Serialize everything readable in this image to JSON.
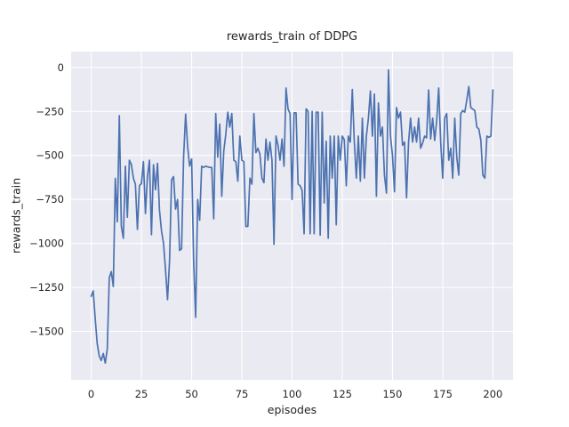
{
  "figure": {
    "title": "rewards_train of DDPG",
    "xlabel": "episodes",
    "ylabel": "rewards_train"
  },
  "chart_data": {
    "type": "line",
    "title": "rewards_train of DDPG",
    "xlabel": "episodes",
    "ylabel": "rewards_train",
    "series_name": "rewards_train",
    "x_start": 0,
    "x_step": 1,
    "values": [
      -1300,
      -1270,
      -1430,
      -1570,
      -1640,
      -1665,
      -1625,
      -1680,
      -1600,
      -1195,
      -1160,
      -1245,
      -630,
      -877,
      -274,
      -903,
      -971,
      -561,
      -851,
      -527,
      -552,
      -629,
      -663,
      -920,
      -672,
      -660,
      -535,
      -830,
      -620,
      -527,
      -950,
      -553,
      -695,
      -545,
      -812,
      -929,
      -1000,
      -1150,
      -1319,
      -1100,
      -640,
      -620,
      -805,
      -750,
      -1040,
      -1030,
      -510,
      -265,
      -450,
      -560,
      -520,
      -1100,
      -1420,
      -750,
      -868,
      -561,
      -568,
      -561,
      -565,
      -568,
      -568,
      -860,
      -262,
      -510,
      -322,
      -732,
      -475,
      -380,
      -254,
      -339,
      -262,
      -527,
      -535,
      -646,
      -390,
      -527,
      -535,
      -903,
      -903,
      -629,
      -663,
      -262,
      -484,
      -459,
      -493,
      -629,
      -655,
      -407,
      -527,
      -424,
      -527,
      -1005,
      -390,
      -442,
      -527,
      -407,
      -561,
      -117,
      -237,
      -262,
      -750,
      -258,
      -258,
      -663,
      -672,
      -698,
      -945,
      -235,
      -250,
      -945,
      -250,
      -945,
      -254,
      -254,
      -953,
      -254,
      -770,
      -420,
      -970,
      -390,
      -629,
      -390,
      -894,
      -390,
      -527,
      -390,
      -410,
      -672,
      -390,
      -424,
      -125,
      -424,
      -629,
      -390,
      -646,
      -288,
      -629,
      -390,
      -290,
      -134,
      -390,
      -151,
      -732,
      -202,
      -390,
      -339,
      -612,
      -714,
      -14,
      -390,
      -500,
      -706,
      -228,
      -288,
      -254,
      -442,
      -424,
      -740,
      -424,
      -288,
      -424,
      -339,
      -424,
      -288,
      -459,
      -430,
      -390,
      -400,
      -128,
      -407,
      -288,
      -415,
      -305,
      -117,
      -424,
      -629,
      -288,
      -262,
      -527,
      -459,
      -629,
      -288,
      -510,
      -612,
      -262,
      -245,
      -254,
      -185,
      -109,
      -228,
      -237,
      -245,
      -339,
      -350,
      -415,
      -612,
      -629,
      -390,
      -397,
      -390,
      -128
    ],
    "xlim": [
      -10,
      210
    ],
    "ylim": [
      -1775,
      90
    ],
    "xticks": [
      0,
      25,
      50,
      75,
      100,
      125,
      150,
      175,
      200
    ],
    "yticks": [
      0,
      -250,
      -500,
      -750,
      -1000,
      -1250,
      -1500
    ],
    "xtick_labels": [
      "0",
      "25",
      "50",
      "75",
      "100",
      "125",
      "150",
      "175",
      "200"
    ],
    "ytick_labels": [
      "0",
      "−250",
      "−500",
      "−750",
      "−1000",
      "−1250",
      "−1500"
    ],
    "grid": true,
    "legend_position": "none",
    "line_color": "#4c72b0",
    "axes_bg": "#eaeaf2",
    "grid_color": "#ffffff",
    "text_color": "#262626",
    "fig_bg": "#ffffff"
  }
}
